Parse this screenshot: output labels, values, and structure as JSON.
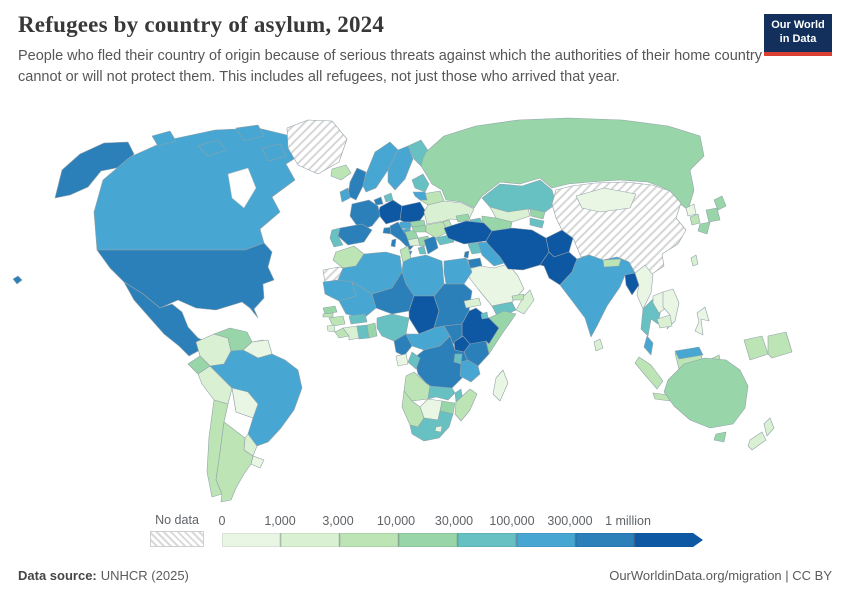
{
  "header": {
    "title": "Refugees by country of asylum, 2024",
    "subtitle": "People who fled their country of origin because of serious threats against which the authorities of their home country cannot or will not protect them. This includes all refugees, not just those who arrived that year.",
    "logo": {
      "line1": "Our World",
      "line2": "in Data",
      "bg_color": "#12305b",
      "accent_color": "#dc3e32"
    }
  },
  "legend": {
    "no_data_label": "No data",
    "tick_labels": [
      "0",
      "1,000",
      "3,000",
      "10,000",
      "30,000",
      "100,000",
      "300,000",
      "1 million"
    ]
  },
  "footer": {
    "source_label": "Data source:",
    "source_value": "UNHCR (2025)",
    "right_text": "OurWorldinData.org/migration | CC BY"
  },
  "chart_data": {
    "type": "choropleth-map",
    "title": "Refugees by country of asylum, 2024",
    "unit": "refugees hosted",
    "legend_position": "bottom",
    "thresholds": [
      0,
      1000,
      3000,
      10000,
      30000,
      100000,
      300000,
      1000000
    ],
    "bins": [
      {
        "label": "0 – 1,000",
        "color": "#e8f6e3"
      },
      {
        "label": "1,000 – 3,000",
        "color": "#d9f0d3"
      },
      {
        "label": "3,000 – 10,000",
        "color": "#bce4b5"
      },
      {
        "label": "10,000 – 30,000",
        "color": "#98d6a9"
      },
      {
        "label": "30,000 – 100,000",
        "color": "#67c1c2"
      },
      {
        "label": "100,000 – 300,000",
        "color": "#47a6d2"
      },
      {
        "label": "300,000 – 1 million",
        "color": "#2c80ba"
      },
      {
        "label": "1 million +",
        "color": "#0d57a3"
      }
    ],
    "no_data": {
      "label": "No data",
      "pattern": "diagonal-hatch"
    },
    "countries": {
      "united-states": 7,
      "canada": 6,
      "greenland": "no_data",
      "iceland": 3,
      "mexico": 7,
      "guatemala": 2,
      "honduras": 1,
      "nicaragua": 1,
      "costa-rica": 7,
      "panama": 5,
      "cuba": 1,
      "hispaniola": 1,
      "colombia": 2,
      "venezuela": 4,
      "guyana": 1,
      "ecuador": 4,
      "peru": 2,
      "brazil": 6,
      "bolivia": 1,
      "paraguay": 2,
      "uruguay": 1,
      "chile": 3,
      "argentina": 3,
      "norway": 6,
      "sweden": 6,
      "finland": 5,
      "denmark": 5,
      "united-kingdom": 7,
      "ireland": 6,
      "netherlands": 7,
      "belgium": 7,
      "germany": 8,
      "poland": 8,
      "czechia": 6,
      "austria": 6,
      "switzerland": 7,
      "france": 7,
      "spain": 7,
      "portugal": 5,
      "italy": 7,
      "greece": 7,
      "croatia": 4,
      "bosnia": 2,
      "serbia": 4,
      "albania": 5,
      "hungary": 4,
      "slovakia": 4,
      "romania": 3,
      "bulgaria": 5,
      "moldova": 3,
      "belarus": 3,
      "baltics": 5,
      "lithuania": 6,
      "ukraine": 2,
      "russia": 4,
      "kazakhstan": 5,
      "uzbekistan": 2,
      "turkmenistan": 4,
      "kyrgyzstan": 4,
      "tajikistan": 5,
      "georgia": 4,
      "azerbaijan": 5,
      "armenia": 6,
      "turkey": 8,
      "syria": 5,
      "lebanon": 7,
      "israel": 5,
      "jordan": 7,
      "iraq": 6,
      "saudi-arabia": 1,
      "yemen": 5,
      "oman": 2,
      "uae": 3,
      "kuwait": 3,
      "iran": 8,
      "afghanistan": 8,
      "pakistan": 8,
      "india": 6,
      "nepal": 3,
      "bangladesh": 8,
      "sri-lanka": 2,
      "myanmar": 1,
      "thailand": 5,
      "laos": 1,
      "vietnam": 1,
      "cambodia": 2,
      "malaysia": 6,
      "indonesia": 3,
      "philippines": 1,
      "china": "no_data",
      "mongolia": 1,
      "north-korea": 1,
      "south-korea": 3,
      "japan": 4,
      "taiwan": 2,
      "papua-new-guinea": 3,
      "australia": 4,
      "new-zealand": 2,
      "morocco": 3,
      "western-sahara": "no_data",
      "algeria": 6,
      "tunisia": 3,
      "libya": 6,
      "egypt": 6,
      "mauritania": 6,
      "mali": 6,
      "niger": 7,
      "chad": 8,
      "sudan": 7,
      "eritrea": 2,
      "ethiopia": 8,
      "somalia": 4,
      "djibouti": 5,
      "senegal": 4,
      "gambia": 3,
      "guinea": 3,
      "sierra-leone": 2,
      "liberia": 3,
      "ivory-coast": 2,
      "ghana": 5,
      "togo-benin": 4,
      "burkina-faso": 5,
      "nigeria": 5,
      "cameroon": 7,
      "central-african-republic": 6,
      "south-sudan": 7,
      "uganda": 8,
      "kenya": 7,
      "rwanda-burundi": 5,
      "tanzania": 6,
      "drc": 7,
      "gabon": 1,
      "congo": 5,
      "angola": 3,
      "zambia": 5,
      "malawi": 5,
      "mozambique": 3,
      "zimbabwe": 4,
      "botswana": 1,
      "namibia": 3,
      "south-africa": 5,
      "lesotho": 1,
      "madagascar": 1
    }
  }
}
